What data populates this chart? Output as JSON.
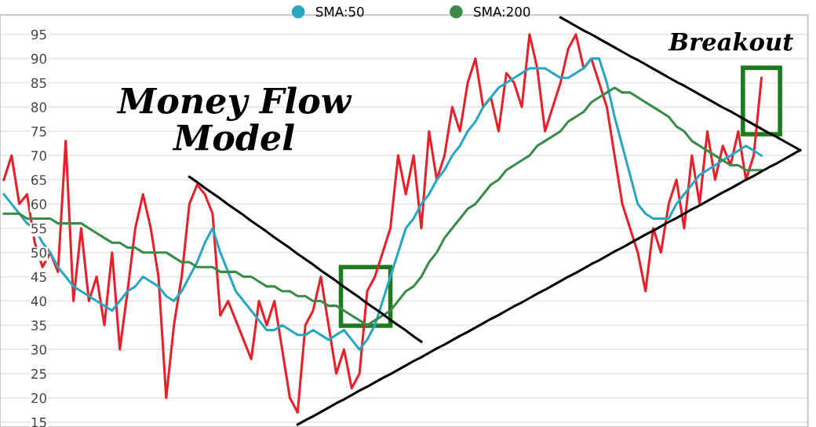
{
  "chart_data": {
    "type": "line",
    "categories": [
      null,
      null,
      null,
      null,
      null,
      null,
      null,
      null,
      null,
      null,
      null,
      null,
      null,
      null,
      null,
      null,
      null,
      null,
      null,
      null,
      null,
      null,
      null,
      null,
      null,
      null,
      null,
      null,
      null,
      null,
      null,
      null,
      null,
      null,
      null,
      null,
      null,
      null,
      null,
      null,
      null,
      null,
      null,
      null,
      null,
      null,
      null,
      null,
      null,
      null,
      null,
      null,
      null,
      null,
      null,
      null,
      null,
      null,
      null,
      null,
      null,
      null,
      null,
      null,
      null,
      null,
      null,
      null,
      null,
      null,
      null,
      null,
      null,
      null,
      null,
      null,
      null,
      null,
      null,
      null,
      null,
      null,
      null,
      null,
      null,
      null,
      null,
      null,
      null,
      null,
      null,
      null,
      null,
      null,
      null,
      null,
      null,
      null,
      null,
      null,
      null,
      null,
      null,
      null
    ],
    "series": [
      {
        "color": "#e8202a",
        "values": [
          65,
          70,
          60,
          62,
          52,
          47,
          50,
          46,
          73,
          40,
          55,
          40,
          45,
          35,
          50,
          30,
          42,
          55,
          62,
          55,
          45,
          20,
          35,
          45,
          60,
          64,
          62,
          58,
          37,
          40,
          36,
          32,
          28,
          40,
          35,
          40,
          30,
          20,
          17,
          35,
          38,
          45,
          35,
          25,
          30,
          22,
          25,
          42,
          45,
          50,
          55,
          70,
          62,
          70,
          55,
          75,
          65,
          70,
          80,
          75,
          85,
          90,
          80,
          82,
          75,
          87,
          85,
          80,
          95,
          88,
          75,
          80,
          85,
          92,
          95,
          88,
          90,
          85,
          80,
          70,
          60,
          55,
          50,
          42,
          55,
          50,
          60,
          65,
          55,
          70,
          60,
          75,
          65,
          72,
          68,
          75,
          65,
          70,
          86,
          null,
          null,
          null,
          null,
          null
        ]
      },
      {
        "name": "SMA:50",
        "color": "#2aa7c0",
        "values": [
          62,
          60,
          58,
          56,
          55,
          52,
          50,
          47,
          45,
          43,
          42,
          41,
          40,
          39,
          38,
          40,
          42,
          43,
          45,
          44,
          43,
          41,
          40,
          42,
          45,
          48,
          52,
          55,
          50,
          46,
          42,
          40,
          38,
          36,
          34,
          34,
          35,
          34,
          33,
          33,
          34,
          33,
          32,
          33,
          34,
          32,
          30,
          32,
          35,
          40,
          45,
          50,
          55,
          57,
          60,
          62,
          65,
          67,
          70,
          72,
          75,
          77,
          80,
          82,
          84,
          85,
          86,
          87,
          88,
          88,
          88,
          87,
          86,
          86,
          87,
          88,
          90,
          90,
          85,
          78,
          72,
          66,
          60,
          58,
          57,
          57,
          57,
          60,
          62,
          64,
          66,
          67,
          68,
          69,
          70,
          71,
          72,
          71,
          70,
          null,
          null,
          null,
          null,
          null
        ]
      },
      {
        "name": "SMA:200",
        "color": "#3a8a4a",
        "values": [
          58,
          58,
          58,
          57,
          57,
          57,
          57,
          56,
          56,
          56,
          56,
          55,
          54,
          53,
          52,
          52,
          51,
          51,
          50,
          50,
          50,
          50,
          49,
          48,
          48,
          47,
          47,
          47,
          46,
          46,
          46,
          45,
          45,
          44,
          43,
          43,
          42,
          42,
          41,
          41,
          40,
          40,
          39,
          39,
          38,
          37,
          36,
          35,
          36,
          37,
          38,
          40,
          42,
          43,
          45,
          48,
          50,
          53,
          55,
          57,
          59,
          60,
          62,
          64,
          65,
          67,
          68,
          69,
          70,
          72,
          73,
          74,
          75,
          77,
          78,
          79,
          81,
          82,
          83,
          84,
          83,
          83,
          82,
          81,
          80,
          79,
          78,
          76,
          75,
          73,
          72,
          71,
          70,
          69,
          68,
          68,
          67,
          67,
          67,
          null,
          null,
          null,
          null,
          null
        ]
      },
      {
        "color": "#000000",
        "values": [
          null,
          null,
          null,
          null,
          null,
          null,
          null,
          null,
          null,
          null,
          null,
          null,
          null,
          null,
          null,
          null,
          null,
          null,
          null,
          null,
          null,
          null,
          null,
          null,
          65.6,
          64.5,
          63.3,
          62.2,
          61.1,
          59.9,
          58.8,
          57.7,
          56.5,
          55.4,
          54.3,
          53.1,
          52.0,
          50.9,
          49.7,
          48.6,
          47.5,
          46.3,
          45.2,
          44.1,
          42.9,
          41.8,
          40.7,
          39.5,
          38.4,
          37.3,
          36.1,
          35.0,
          33.9,
          32.7,
          31.6,
          null,
          null,
          null,
          null,
          null,
          null,
          null,
          null,
          null,
          null,
          null,
          null,
          null,
          null,
          null,
          null,
          null,
          null,
          null,
          null,
          null,
          null,
          null,
          null,
          null,
          null,
          null,
          null,
          null,
          null,
          null,
          null,
          null,
          null,
          null,
          null,
          null,
          null,
          null,
          null,
          null,
          null,
          null,
          null,
          null,
          null,
          null,
          null,
          null
        ]
      },
      {
        "color": "#000000",
        "values": [
          null,
          null,
          null,
          null,
          null,
          null,
          null,
          null,
          null,
          null,
          null,
          null,
          null,
          null,
          null,
          null,
          null,
          null,
          null,
          null,
          null,
          null,
          null,
          null,
          null,
          null,
          null,
          null,
          null,
          null,
          null,
          null,
          null,
          null,
          null,
          null,
          null,
          null,
          14.5,
          15.4,
          16.2,
          17.1,
          18.0,
          18.9,
          19.7,
          20.6,
          21.5,
          22.3,
          23.2,
          24.1,
          24.9,
          25.8,
          26.7,
          27.6,
          28.4,
          29.3,
          30.2,
          31.0,
          31.9,
          32.8,
          33.6,
          34.5,
          35.4,
          36.3,
          37.1,
          38.0,
          38.9,
          39.7,
          40.6,
          41.5,
          42.3,
          43.2,
          44.1,
          45.0,
          45.8,
          46.7,
          47.6,
          48.4,
          49.3,
          50.2,
          51.0,
          51.9,
          52.8,
          53.7,
          54.5,
          55.4,
          56.3,
          57.1,
          58.0,
          58.9,
          59.7,
          60.6,
          61.5,
          62.4,
          63.2,
          64.1,
          65.0,
          65.8,
          66.7,
          67.6,
          68.4,
          69.3,
          70.2,
          71.1
        ]
      },
      {
        "color": "#000000",
        "values": [
          null,
          null,
          null,
          null,
          null,
          null,
          null,
          null,
          null,
          null,
          null,
          null,
          null,
          null,
          null,
          null,
          null,
          null,
          null,
          null,
          null,
          null,
          null,
          null,
          null,
          null,
          null,
          null,
          null,
          null,
          null,
          null,
          null,
          null,
          null,
          null,
          null,
          null,
          null,
          null,
          null,
          null,
          null,
          null,
          null,
          null,
          null,
          null,
          null,
          null,
          null,
          null,
          null,
          null,
          null,
          null,
          null,
          null,
          null,
          null,
          null,
          null,
          null,
          null,
          null,
          null,
          null,
          null,
          null,
          null,
          null,
          null,
          98.5,
          97.6,
          96.7,
          95.8,
          95.0,
          94.1,
          93.2,
          92.3,
          91.4,
          90.5,
          89.7,
          88.8,
          87.9,
          87.0,
          86.1,
          85.2,
          84.4,
          83.5,
          82.6,
          81.7,
          80.8,
          79.9,
          79.1,
          78.2,
          77.3,
          76.4,
          75.5,
          74.6,
          73.8,
          72.9,
          72.0,
          71.1
        ]
      }
    ],
    "ylim": [
      14,
      99
    ],
    "yticks": [
      15,
      20,
      25,
      30,
      35,
      40,
      45,
      50,
      55,
      60,
      65,
      70,
      75,
      80,
      85,
      90,
      95
    ],
    "grid": "y",
    "legend": "top",
    "line_style": "solid",
    "marker": "none",
    "annotations": [
      "Money Flow Model",
      "Breakout"
    ]
  }
}
